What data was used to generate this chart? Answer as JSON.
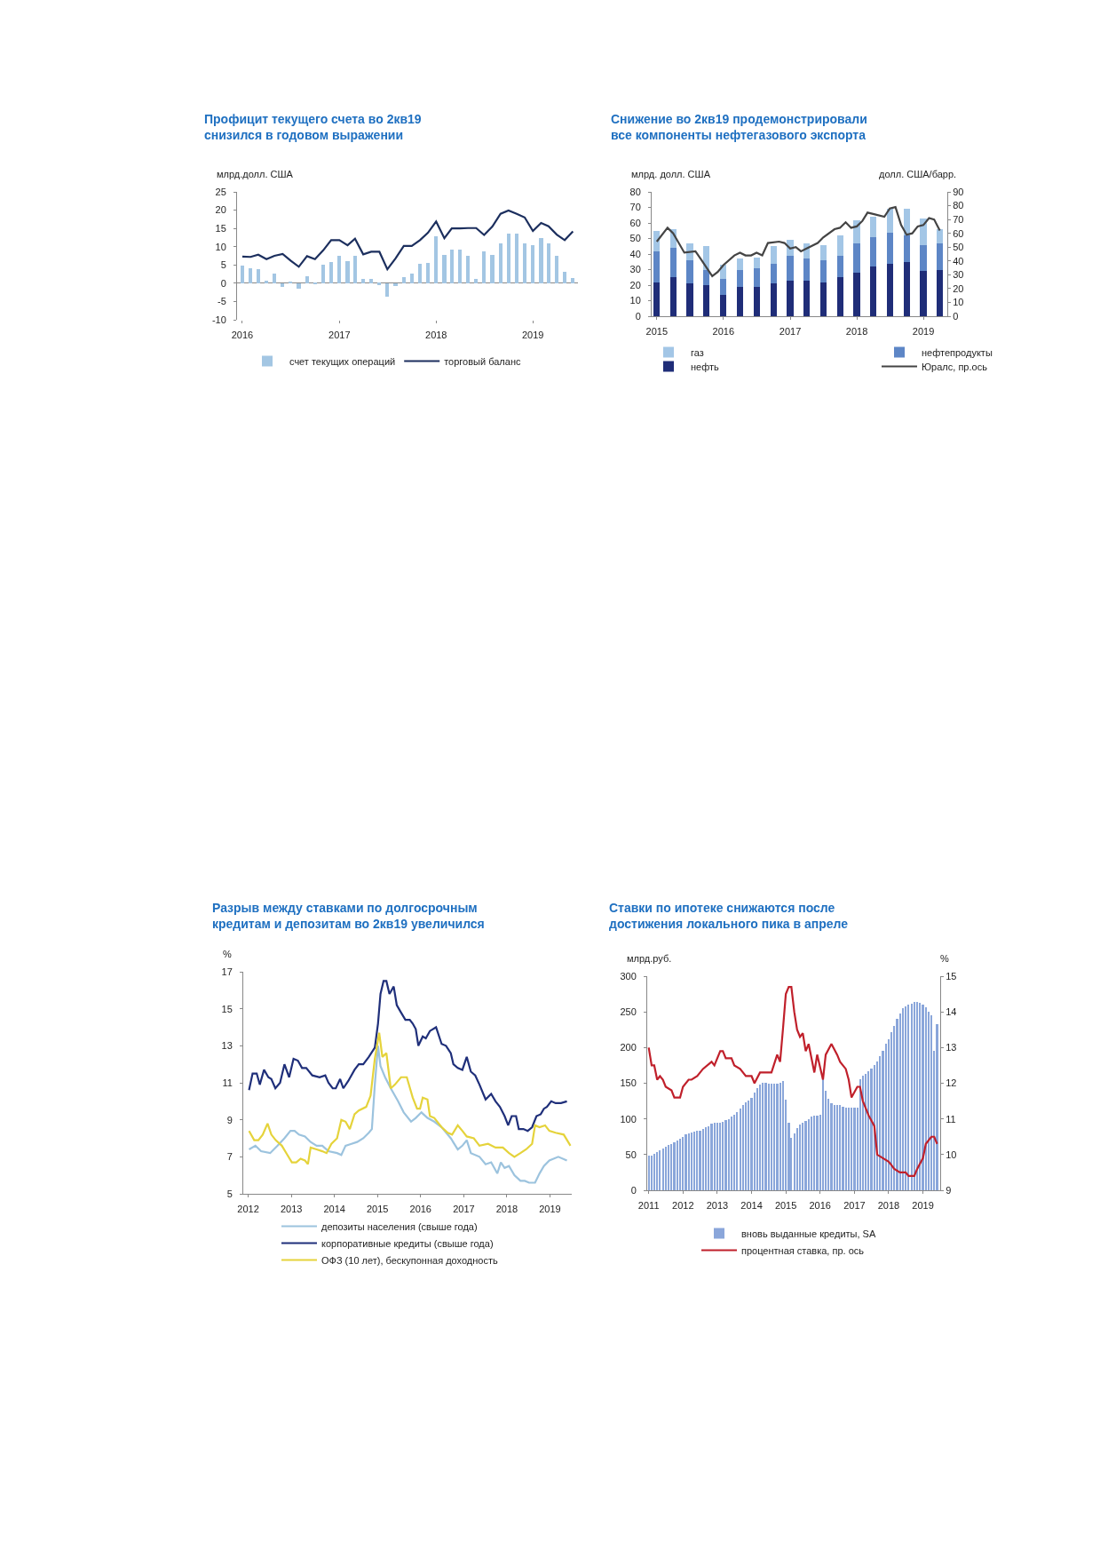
{
  "chart_data": [
    {
      "type": "bar",
      "title": "Профицит текущего счета во 2кв19\nснизился в годовом выражении",
      "ylabel": "млрд.долл. США",
      "legend": "bottom",
      "x": [
        "2016-01",
        "2016-02",
        "2016-03",
        "2016-04",
        "2016-05",
        "2016-06",
        "2016-07",
        "2016-08",
        "2016-09",
        "2016-10",
        "2016-11",
        "2016-12",
        "2017-01",
        "2017-02",
        "2017-03",
        "2017-04",
        "2017-05",
        "2017-06",
        "2017-07",
        "2017-08",
        "2017-09",
        "2017-10",
        "2017-11",
        "2017-12",
        "2018-01",
        "2018-02",
        "2018-03",
        "2018-04",
        "2018-05",
        "2018-06",
        "2018-07",
        "2018-08",
        "2018-09",
        "2018-10",
        "2018-11",
        "2018-12",
        "2019-01",
        "2019-02",
        "2019-03",
        "2019-04",
        "2019-05",
        "2019-06"
      ],
      "series": [
        {
          "name": "счет текущих операций",
          "color": "#a3c6e3",
          "values": [
            4.8,
            4.0,
            3.8,
            0.7,
            2.7,
            -1.0,
            0.3,
            -1.6,
            1.8,
            -0.2,
            5.0,
            5.7,
            7.6,
            6.0,
            7.6,
            1.3,
            1.2,
            -0.4,
            -3.6,
            -0.8,
            1.7,
            2.7,
            5.2,
            5.6,
            12.9,
            7.8,
            9.2,
            9.2,
            7.6,
            1.1,
            8.7,
            7.8,
            10.9,
            13.5,
            13.6,
            11.0,
            10.3,
            12.4,
            11.0,
            7.5,
            3.2,
            1.4
          ]
        },
        {
          "name": "торговый баланс",
          "type": "line",
          "color": "#1c2f5e",
          "values": [
            7.3,
            7.2,
            7.8,
            6.6,
            7.5,
            8.0,
            6.2,
            4.5,
            7.4,
            6.6,
            9.0,
            11.8,
            11.8,
            10.4,
            12.2,
            7.9,
            8.6,
            8.6,
            3.8,
            6.8,
            10.2,
            10.2,
            11.8,
            13.8,
            16.9,
            12.3,
            15.0,
            15.0,
            15.1,
            15.1,
            13.2,
            15.5,
            19.0,
            19.9,
            19.0,
            18.0,
            14.3,
            16.5,
            15.6,
            13.3,
            11.8,
            14.2
          ]
        }
      ],
      "xlim": [
        "2015-12-12",
        "2019-06-20"
      ],
      "xticks": [
        {
          "value": "2016-01-01",
          "label": "2016"
        },
        {
          "value": "2017-01-01",
          "label": "2017"
        },
        {
          "value": "2018-01-01",
          "label": "2018"
        },
        {
          "value": "2019-01-01",
          "label": "2019"
        }
      ],
      "ylim": [
        -10,
        25
      ],
      "yticks": [
        -10,
        -5,
        0,
        5,
        10,
        15,
        20,
        25
      ]
    },
    {
      "type": "bar",
      "stacked": true,
      "title": "Снижение во 2кв19 продемонстрировали\nвсе компоненты нефтегазового экспорта",
      "ylabel": "млрд. долл. США",
      "y2label": "долл. США/барр.",
      "legend": "bottom",
      "x": [
        "2015-01",
        "2015-04",
        "2015-07",
        "2015-10",
        "2016-01",
        "2016-04",
        "2016-07",
        "2016-10",
        "2017-01",
        "2017-04",
        "2017-07",
        "2017-10",
        "2018-01",
        "2018-04",
        "2018-07",
        "2018-10",
        "2019-01",
        "2019-04"
      ],
      "series": [
        {
          "name": "нефть",
          "color": "#1f2d78",
          "values": [
            22,
            25,
            21,
            20,
            14,
            19,
            19,
            21,
            23,
            23,
            22,
            25,
            28,
            32,
            34,
            35,
            29,
            30
          ]
        },
        {
          "name": "нефтепродукты",
          "color": "#5d86c6",
          "values": [
            20,
            19,
            15,
            10,
            10,
            11,
            12,
            13,
            16,
            14,
            14,
            14,
            19,
            19,
            20,
            17,
            17,
            17
          ]
        },
        {
          "name": "газ",
          "color": "#a3c6e6",
          "values": [
            13,
            12,
            11,
            15,
            9,
            7,
            7,
            11,
            10,
            10,
            10,
            13,
            15,
            13,
            15,
            17,
            17,
            9
          ]
        },
        {
          "name": "Юралс, пр.ось",
          "type": "line",
          "axis": "y2",
          "color": "#444444",
          "x": [
            "2015-01",
            "2015-03",
            "2015-04",
            "2015-06",
            "2015-08",
            "2015-09",
            "2015-11",
            "2015-12",
            "2016-01",
            "2016-03",
            "2016-04",
            "2016-05",
            "2016-06",
            "2016-07",
            "2016-08",
            "2016-09",
            "2016-11",
            "2016-12",
            "2017-01",
            "2017-02",
            "2017-03",
            "2017-04",
            "2017-06",
            "2017-07",
            "2017-09",
            "2017-10",
            "2017-11",
            "2017-12",
            "2018-01",
            "2018-02",
            "2018-03",
            "2018-04",
            "2018-06",
            "2018-07",
            "2018-08",
            "2018-09",
            "2018-10",
            "2018-11",
            "2018-12",
            "2019-01",
            "2019-02",
            "2019-03",
            "2019-04"
          ],
          "values": [
            54,
            64,
            60,
            46,
            47,
            41,
            29,
            32,
            37,
            44,
            46,
            44,
            44,
            46,
            44,
            53,
            54,
            53,
            49,
            50,
            47,
            49,
            53,
            57,
            63,
            64,
            68,
            64,
            65,
            69,
            75,
            74,
            72,
            78,
            79,
            66,
            59,
            60,
            65,
            66,
            71,
            70,
            62
          ]
        }
      ],
      "xlim": [
        "2014-12-04",
        "2019-05-12"
      ],
      "xticks": [
        {
          "value": "2015-01-01",
          "label": "2015"
        },
        {
          "value": "2016-01-01",
          "label": "2016"
        },
        {
          "value": "2017-01-01",
          "label": "2017"
        },
        {
          "value": "2018-01-01",
          "label": "2018"
        },
        {
          "value": "2019-01-01",
          "label": "2019"
        }
      ],
      "ylim": [
        0,
        80
      ],
      "yticks": [
        0,
        10,
        20,
        30,
        40,
        50,
        60,
        70,
        80
      ],
      "y2lim": [
        0,
        90
      ],
      "y2ticks": [
        0,
        10,
        20,
        30,
        40,
        50,
        60,
        70,
        80,
        90
      ]
    },
    {
      "type": "line",
      "title": "Разрыв между ставками по долгосрочным\nкредитам и депозитам во 2кв19 увеличился",
      "ylabel": "%",
      "legend": "bottom",
      "series": [
        {
          "name": "депозиты населения (свыше года)",
          "color": "#9cc3de",
          "x": [
            "2012-01-08",
            "2012-03-02",
            "2012-04-19",
            "2012-07-05",
            "2012-09-06",
            "2012-11-03",
            "2012-12-24",
            "2013-01-28",
            "2013-03-06",
            "2013-04-26",
            "2013-06-13",
            "2013-08-03",
            "2013-09-20",
            "2013-11-11",
            "2014-01-23",
            "2014-02-28",
            "2014-04-05",
            "2014-05-25",
            "2014-07-12",
            "2014-09-02",
            "2014-10-19",
            "2014-11-14",
            "2014-12-09",
            "2015-01-05",
            "2015-01-26",
            "2015-03-06",
            "2015-04-23",
            "2015-06-24",
            "2015-08-11",
            "2015-10-12",
            "2015-11-21",
            "2016-01-08",
            "2016-02-28",
            "2016-04-26",
            "2016-06-27",
            "2016-09-13",
            "2016-11-11",
            "2016-12-20",
            "2017-01-26",
            "2017-03-02",
            "2017-05-14",
            "2017-07-05",
            "2017-08-21",
            "2017-10-12",
            "2017-11-11",
            "2017-12-13",
            "2018-01-19",
            "2018-03-06",
            "2018-04-26",
            "2018-06-02",
            "2018-07-08",
            "2018-08-28",
            "2018-10-05",
            "2018-11-11",
            "2018-12-27",
            "2019-03-13",
            "2019-05-25"
          ],
          "values": [
            7.4,
            7.6,
            7.3,
            7.2,
            7.6,
            8.0,
            8.4,
            8.4,
            8.2,
            8.1,
            7.8,
            7.6,
            7.6,
            7.3,
            7.2,
            7.1,
            7.6,
            7.7,
            7.8,
            8.0,
            8.3,
            8.5,
            10.9,
            13.0,
            11.9,
            11.3,
            10.7,
            10.0,
            9.4,
            8.9,
            9.1,
            9.4,
            9.1,
            8.9,
            8.6,
            8.0,
            7.4,
            7.6,
            7.9,
            7.2,
            7.0,
            6.6,
            6.7,
            6.1,
            6.7,
            6.4,
            6.5,
            6.0,
            5.7,
            5.7,
            5.6,
            5.6,
            6.1,
            6.5,
            6.8,
            7.0,
            6.8
          ]
        },
        {
          "name": "корпоративные кредиты (свыше года)",
          "color": "#1f2f7a",
          "x": [
            "2012-01-08",
            "2012-02-07",
            "2012-03-13",
            "2012-04-08",
            "2012-05-14",
            "2012-06-20",
            "2012-07-15",
            "2012-08-18",
            "2012-09-27",
            "2012-11-03",
            "2012-12-13",
            "2013-01-19",
            "2013-02-25",
            "2013-04-01",
            "2013-05-07",
            "2013-06-27",
            "2013-08-28",
            "2013-10-15",
            "2013-11-11",
            "2013-12-17",
            "2014-01-12",
            "2014-02-18",
            "2014-03-17",
            "2014-04-28",
            "2014-06-20",
            "2014-07-26",
            "2014-09-02",
            "2014-10-19",
            "2014-12-09",
            "2015-01-05",
            "2015-01-26",
            "2015-02-21",
            "2015-03-17",
            "2015-04-12",
            "2015-05-18",
            "2015-06-13",
            "2015-07-19",
            "2015-08-25",
            "2015-10-01",
            "2015-10-26",
            "2015-11-21",
            "2015-12-13",
            "2016-01-19",
            "2016-02-14",
            "2016-03-20",
            "2016-05-11",
            "2016-06-27",
            "2016-08-03",
            "2016-09-13",
            "2016-10-05",
            "2016-11-11",
            "2016-12-20",
            "2017-01-26",
            "2017-03-02",
            "2017-04-08",
            "2017-05-14",
            "2017-07-05",
            "2017-08-21",
            "2017-09-27",
            "2017-11-03",
            "2017-12-13",
            "2018-01-12",
            "2018-02-11",
            "2018-03-20",
            "2018-04-12",
            "2018-05-21",
            "2018-06-27",
            "2018-08-03",
            "2018-09-09",
            "2018-10-15",
            "2018-11-11",
            "2018-12-06",
            "2019-01-12",
            "2019-02-18",
            "2019-04-05",
            "2019-05-25"
          ],
          "values": [
            10.6,
            11.5,
            11.5,
            10.9,
            11.7,
            11.3,
            11.2,
            10.7,
            11.0,
            12.0,
            11.3,
            12.3,
            12.2,
            11.8,
            11.8,
            11.4,
            11.3,
            11.4,
            11.0,
            10.7,
            10.7,
            11.2,
            10.7,
            11.1,
            11.7,
            12.0,
            12.0,
            12.4,
            12.9,
            14.2,
            15.8,
            16.5,
            16.5,
            15.8,
            16.2,
            15.2,
            14.8,
            14.4,
            14.4,
            14.2,
            13.9,
            13.0,
            13.5,
            13.4,
            13.8,
            14.0,
            13.1,
            13.0,
            12.6,
            12.0,
            11.8,
            11.7,
            12.4,
            11.6,
            11.4,
            10.9,
            10.1,
            10.4,
            10.0,
            9.7,
            9.2,
            8.7,
            9.2,
            9.2,
            8.5,
            8.5,
            8.4,
            8.6,
            9.2,
            9.3,
            9.6,
            9.7,
            10.0,
            9.9,
            9.9,
            10.0
          ]
        },
        {
          "name": "ОФЗ (10 лет), бескупонная доходность",
          "color": "#e5d33b",
          "x": [
            "2012-01-08",
            "2012-02-21",
            "2012-03-27",
            "2012-05-03",
            "2012-06-13",
            "2012-07-15",
            "2012-08-21",
            "2012-10-12",
            "2012-11-28",
            "2013-01-05",
            "2013-02-11",
            "2013-03-20",
            "2013-04-26",
            "2013-05-21",
            "2013-06-13",
            "2013-08-03",
            "2013-09-20",
            "2013-10-26",
            "2013-12-06",
            "2014-01-23",
            "2014-02-28",
            "2014-04-05",
            "2014-05-11",
            "2014-06-20",
            "2014-07-26",
            "2014-09-27",
            "2014-11-03",
            "2014-12-09",
            "2015-01-15",
            "2015-02-11",
            "2015-03-17",
            "2015-04-23",
            "2015-05-28",
            "2015-07-19",
            "2015-09-06",
            "2015-10-26",
            "2015-12-02",
            "2015-12-27",
            "2016-01-19",
            "2016-02-28",
            "2016-03-20",
            "2016-04-26",
            "2016-06-27",
            "2016-08-18",
            "2016-09-24",
            "2016-11-11",
            "2016-12-20",
            "2017-01-26",
            "2017-03-27",
            "2017-05-14",
            "2017-07-26",
            "2017-09-27",
            "2017-11-28",
            "2018-01-19",
            "2018-03-06",
            "2018-04-26",
            "2018-06-13",
            "2018-08-03",
            "2018-08-28",
            "2018-10-05",
            "2018-11-21",
            "2018-12-27",
            "2019-02-18",
            "2019-04-28",
            "2019-06-24"
          ],
          "values": [
            8.4,
            7.9,
            7.9,
            8.2,
            8.8,
            8.2,
            7.9,
            7.6,
            7.1,
            6.7,
            6.7,
            6.9,
            6.8,
            6.6,
            7.5,
            7.4,
            7.3,
            7.2,
            7.7,
            8.0,
            9.0,
            8.9,
            8.5,
            9.3,
            9.5,
            9.7,
            10.3,
            12.3,
            13.7,
            12.4,
            12.6,
            10.7,
            10.9,
            11.3,
            11.3,
            10.2,
            9.6,
            9.6,
            10.2,
            10.1,
            9.2,
            9.1,
            8.6,
            8.3,
            8.2,
            8.7,
            8.4,
            8.1,
            8.0,
            7.6,
            7.7,
            7.5,
            7.5,
            7.2,
            7.0,
            7.2,
            7.4,
            7.7,
            8.7,
            8.6,
            8.7,
            8.4,
            8.3,
            8.2,
            7.6
          ]
        }
      ],
      "xlim": [
        "2011-11-20",
        "2019-07-05"
      ],
      "xticks": [
        {
          "value": "2012-01-01",
          "label": "2012"
        },
        {
          "value": "2013-01-01",
          "label": "2013"
        },
        {
          "value": "2014-01-01",
          "label": "2014"
        },
        {
          "value": "2015-01-01",
          "label": "2015"
        },
        {
          "value": "2016-01-01",
          "label": "2016"
        },
        {
          "value": "2017-01-01",
          "label": "2017"
        },
        {
          "value": "2018-01-01",
          "label": "2018"
        },
        {
          "value": "2019-01-01",
          "label": "2019"
        }
      ],
      "ylim": [
        5,
        17
      ],
      "yticks": [
        5,
        7,
        9,
        11,
        13,
        15,
        17
      ]
    },
    {
      "type": "bar",
      "title": "Ставки по ипотеке снижаются после\nдостижения локального пика в апреле",
      "ylabel": "млрд.руб.",
      "y2label": "%",
      "legend": "bottom",
      "x": [
        "2011-01",
        "2011-02",
        "2011-03",
        "2011-04",
        "2011-05",
        "2011-06",
        "2011-07",
        "2011-08",
        "2011-09",
        "2011-10",
        "2011-11",
        "2011-12",
        "2012-01",
        "2012-02",
        "2012-03",
        "2012-04",
        "2012-05",
        "2012-06",
        "2012-07",
        "2012-08",
        "2012-09",
        "2012-10",
        "2012-11",
        "2012-12",
        "2013-01",
        "2013-02",
        "2013-03",
        "2013-04",
        "2013-05",
        "2013-06",
        "2013-07",
        "2013-08",
        "2013-09",
        "2013-10",
        "2013-11",
        "2013-12",
        "2014-01",
        "2014-02",
        "2014-03",
        "2014-04",
        "2014-05",
        "2014-06",
        "2014-07",
        "2014-08",
        "2014-09",
        "2014-10",
        "2014-11",
        "2014-12",
        "2015-01",
        "2015-02",
        "2015-03",
        "2015-04",
        "2015-05",
        "2015-06",
        "2015-07",
        "2015-08",
        "2015-09",
        "2015-10",
        "2015-11",
        "2015-12",
        "2016-01",
        "2016-02",
        "2016-03",
        "2016-04",
        "2016-05",
        "2016-06",
        "2016-07",
        "2016-08",
        "2016-09",
        "2016-10",
        "2016-11",
        "2016-12",
        "2017-01",
        "2017-02",
        "2017-03",
        "2017-04",
        "2017-05",
        "2017-06",
        "2017-07",
        "2017-08",
        "2017-09",
        "2017-10",
        "2017-11",
        "2017-12",
        "2018-01",
        "2018-02",
        "2018-03",
        "2018-04",
        "2018-05",
        "2018-06",
        "2018-07",
        "2018-08",
        "2018-09",
        "2018-10",
        "2018-11",
        "2018-12",
        "2019-01",
        "2019-02",
        "2019-03",
        "2019-04",
        "2019-05",
        "2019-06"
      ],
      "series": [
        {
          "name": "вновь выданные кредиты, SA",
          "color": "#8aa6da",
          "values": [
            48,
            49,
            51,
            53,
            56,
            59,
            61,
            63,
            65,
            67,
            70,
            72,
            75,
            78,
            80,
            81,
            82,
            83,
            84,
            86,
            88,
            90,
            93,
            95,
            95,
            95,
            96,
            98,
            100,
            103,
            106,
            110,
            115,
            120,
            123,
            126,
            130,
            137,
            143,
            148,
            151,
            151,
            150,
            150,
            150,
            150,
            151,
            153,
            127,
            95,
            74,
            80,
            87,
            92,
            95,
            97,
            100,
            103,
            104,
            105,
            106,
            155,
            140,
            128,
            122,
            120,
            120,
            119,
            117,
            116,
            116,
            116,
            116,
            116,
            155,
            160,
            163,
            167,
            170,
            175,
            180,
            188,
            195,
            205,
            212,
            222,
            230,
            240,
            248,
            255,
            258,
            260,
            262,
            264,
            264,
            263,
            260,
            256,
            250,
            245,
            195,
            233
          ]
        },
        {
          "name": "процентная ставка, пр. ось",
          "type": "line",
          "axis": "y2",
          "color": "#c0202b",
          "x": [
            "2011-01",
            "2011-02",
            "2011-03",
            "2011-04",
            "2011-05",
            "2011-06",
            "2011-07",
            "2011-09",
            "2011-10",
            "2011-12",
            "2012-01",
            "2012-03",
            "2012-04",
            "2012-06",
            "2012-08",
            "2012-11",
            "2012-12",
            "2013-02",
            "2013-03",
            "2013-04",
            "2013-06",
            "2013-07",
            "2013-09",
            "2013-11",
            "2014-01",
            "2014-02",
            "2014-04",
            "2014-06",
            "2014-08",
            "2014-10",
            "2014-11",
            "2014-12",
            "2015-01",
            "2015-02",
            "2015-03",
            "2015-04",
            "2015-05",
            "2015-06",
            "2015-07",
            "2015-08",
            "2015-09",
            "2015-11",
            "2015-12",
            "2016-02",
            "2016-03",
            "2016-05",
            "2016-07",
            "2016-08",
            "2016-10",
            "2016-11",
            "2016-12",
            "2017-02",
            "2017-03",
            "2017-04",
            "2017-06",
            "2017-08",
            "2017-09",
            "2017-11",
            "2018-01",
            "2018-02",
            "2018-03",
            "2018-05",
            "2018-07",
            "2018-08",
            "2018-10",
            "2018-11",
            "2019-01",
            "2019-02",
            "2019-04",
            "2019-05",
            "2019-06"
          ],
          "values": [
            13.0,
            12.5,
            12.5,
            12.1,
            12.2,
            12.1,
            11.9,
            11.8,
            11.6,
            11.6,
            11.9,
            12.1,
            12.1,
            12.2,
            12.4,
            12.6,
            12.5,
            12.9,
            12.9,
            12.7,
            12.7,
            12.5,
            12.4,
            12.2,
            12.2,
            12.0,
            12.3,
            12.3,
            12.3,
            12.8,
            12.6,
            13.5,
            14.5,
            14.7,
            14.7,
            14.0,
            13.5,
            13.3,
            13.4,
            12.9,
            13.1,
            12.3,
            12.8,
            12.1,
            12.8,
            13.1,
            12.8,
            12.6,
            12.4,
            12.1,
            11.6,
            11.9,
            11.9,
            11.5,
            11.1,
            10.8,
            10.0,
            9.9,
            9.8,
            9.7,
            9.6,
            9.5,
            9.5,
            9.4,
            9.4,
            9.6,
            9.9,
            10.3,
            10.5,
            10.5,
            10.3
          ]
        }
      ],
      "xlim": [
        "2010-12-16",
        "2019-07-04"
      ],
      "xticks": [
        {
          "value": "2011-01-01",
          "label": "2011"
        },
        {
          "value": "2012-01-01",
          "label": "2012"
        },
        {
          "value": "2013-01-01",
          "label": "2013"
        },
        {
          "value": "2014-01-01",
          "label": "2014"
        },
        {
          "value": "2015-01-01",
          "label": "2015"
        },
        {
          "value": "2016-01-01",
          "label": "2016"
        },
        {
          "value": "2017-01-01",
          "label": "2017"
        },
        {
          "value": "2018-01-01",
          "label": "2018"
        },
        {
          "value": "2019-01-01",
          "label": "2019"
        }
      ],
      "ylim": [
        0,
        300
      ],
      "yticks": [
        0,
        50,
        100,
        150,
        200,
        250,
        300
      ],
      "y2lim": [
        9,
        15
      ],
      "y2ticks": [
        9,
        10,
        11,
        12,
        13,
        14,
        15
      ]
    }
  ]
}
